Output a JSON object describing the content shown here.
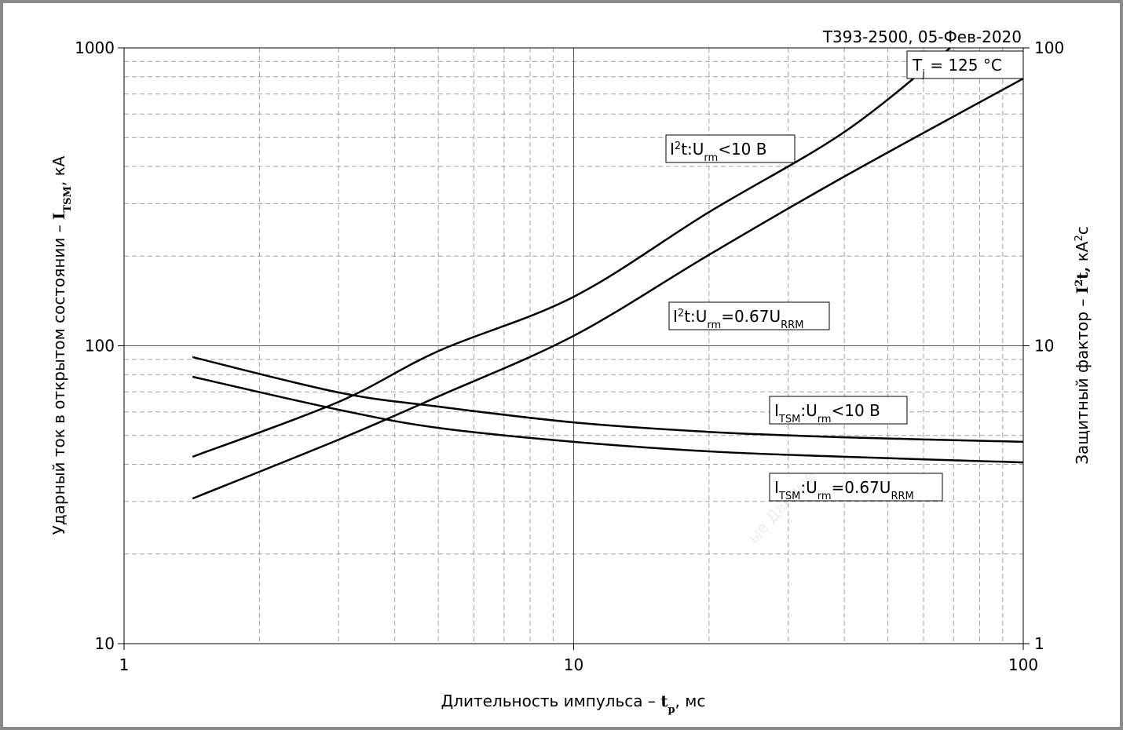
{
  "chart_data": {
    "type": "line",
    "title": "Т393-2500, 05-Фев-2020",
    "condition": [
      {
        "text": "T"
      },
      {
        "text": "j",
        "pos": "sub"
      },
      {
        "text": " = 125 °C"
      }
    ],
    "xlabel": [
      {
        "text": "Длительность импульса – "
      },
      {
        "text": "t",
        "bold": true
      },
      {
        "text": "p",
        "pos": "sub",
        "bold": true
      },
      {
        "text": ", мс"
      }
    ],
    "ylabel": [
      {
        "text": "Ударный ток в открытом состоянии – "
      },
      {
        "text": "I",
        "bold": true
      },
      {
        "text": "TSM",
        "pos": "sub",
        "bold": true
      },
      {
        "text": ", кА"
      }
    ],
    "y2label": [
      {
        "text": "Защитный фактор – "
      },
      {
        "text": "I",
        "bold": true
      },
      {
        "text": "2",
        "pos": "sup",
        "bold": true
      },
      {
        "text": "t,",
        "bold": true
      },
      {
        "text": " кА"
      },
      {
        "text": "2",
        "pos": "sup"
      },
      {
        "text": "с"
      }
    ],
    "watermark": "ые Данные",
    "xscale": "log",
    "yscale": "log",
    "y2scale": "log",
    "xlim": [
      1,
      100
    ],
    "xticks": [
      1,
      10,
      100
    ],
    "ylim": [
      10,
      1000
    ],
    "yticks": [
      10,
      100,
      1000
    ],
    "y2lim": [
      1,
      100
    ],
    "y2ticks": [
      1,
      10,
      100
    ],
    "x_minor_grid": [
      2,
      3,
      4,
      5,
      6,
      7,
      8,
      9,
      20,
      30,
      40,
      50,
      60,
      70,
      80,
      90
    ],
    "y_minor_grid": [
      20,
      30,
      40,
      50,
      60,
      70,
      80,
      90,
      200,
      300,
      400,
      500,
      600,
      700,
      800,
      900
    ],
    "grid": true,
    "series": [
      {
        "label": [
          {
            "text": "I"
          },
          {
            "text": "2",
            "pos": "sup"
          },
          {
            "text": "t:U"
          },
          {
            "text": "rm",
            "pos": "sub"
          },
          {
            "text": "<10 В"
          }
        ],
        "axis": "y2",
        "color": "#000000",
        "x": [
          1.42,
          3,
          5,
          10,
          20,
          40,
          68.8
        ],
        "values": [
          4.24,
          6.48,
          9.6,
          14.6,
          28.1,
          52.2,
          100
        ]
      },
      {
        "label": [
          {
            "text": "I"
          },
          {
            "text": "2",
            "pos": "sup"
          },
          {
            "text": "t:U"
          },
          {
            "text": "rm",
            "pos": "sub"
          },
          {
            "text": "=0.67U"
          },
          {
            "text": "RRM",
            "pos": "sub"
          }
        ],
        "axis": "y2",
        "color": "#000000",
        "x": [
          1.42,
          3,
          5,
          10,
          20,
          40,
          100
        ],
        "values": [
          3.07,
          4.84,
          6.76,
          10.8,
          20.2,
          37,
          78.9
        ]
      },
      {
        "label": [
          {
            "text": "I"
          },
          {
            "text": "TSM",
            "pos": "sub"
          },
          {
            "text": ":U"
          },
          {
            "text": "rm",
            "pos": "sub"
          },
          {
            "text": "<10 В"
          }
        ],
        "axis": "y",
        "color": "#000000",
        "x": [
          1.42,
          3,
          5,
          10,
          20,
          40,
          100
        ],
        "values": [
          91.6,
          69.7,
          62.5,
          55.3,
          51.4,
          49.3,
          47.6
        ]
      },
      {
        "label": [
          {
            "text": "I"
          },
          {
            "text": "TSM",
            "pos": "sub"
          },
          {
            "text": ":U"
          },
          {
            "text": "rm",
            "pos": "sub"
          },
          {
            "text": "=0.67U"
          },
          {
            "text": "RRM",
            "pos": "sub"
          }
        ],
        "axis": "y",
        "color": "#000000",
        "x": [
          1.42,
          3,
          5,
          10,
          20,
          40,
          100
        ],
        "values": [
          78.7,
          61,
          53,
          47.6,
          44.2,
          42.4,
          40.6
        ]
      }
    ]
  }
}
